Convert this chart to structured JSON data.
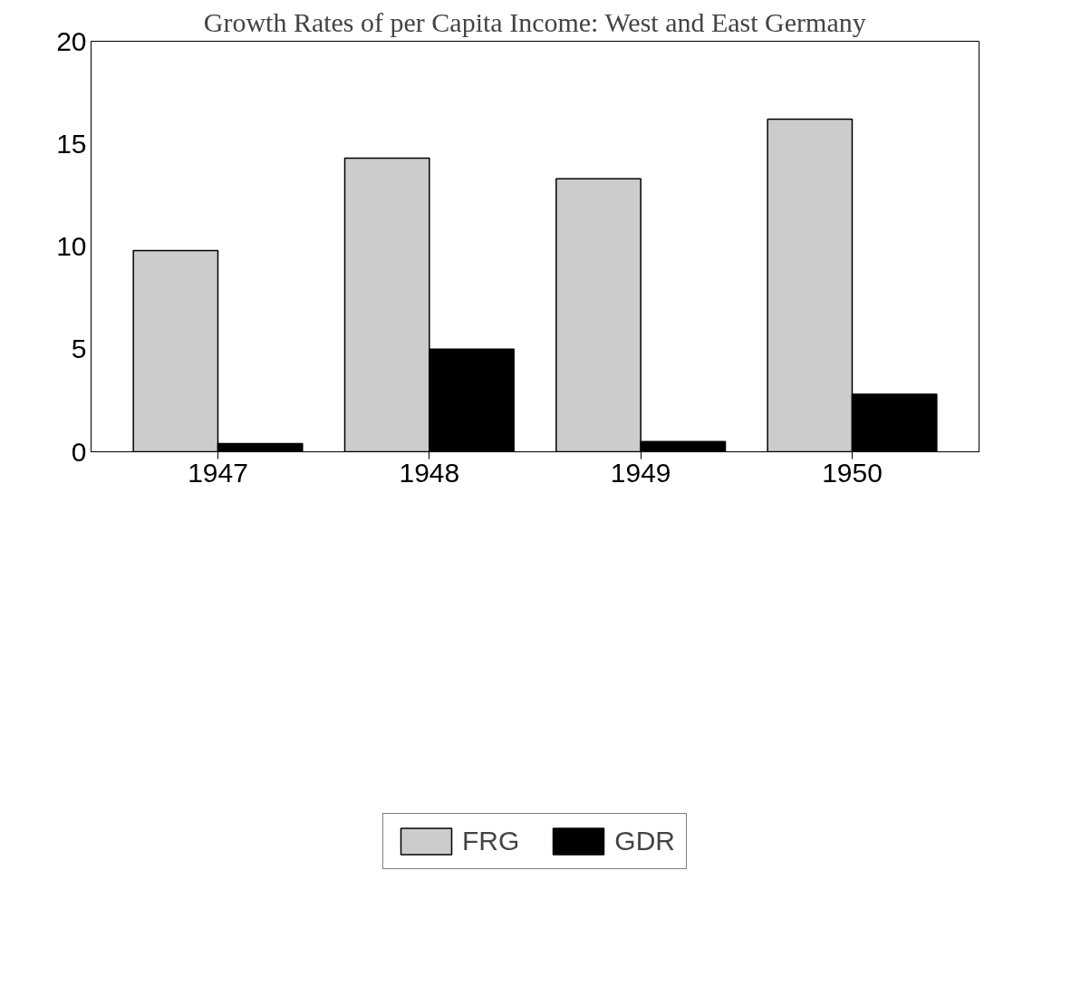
{
  "chart_data": {
    "type": "bar",
    "title": "Growth Rates of per Capita Income: West and East Germany",
    "categories": [
      "1947",
      "1948",
      "1949",
      "1950"
    ],
    "series": [
      {
        "name": "FRG",
        "color": "#cccccc",
        "values": [
          9.8,
          14.3,
          13.3,
          16.2
        ]
      },
      {
        "name": "GDR",
        "color": "#000000",
        "values": [
          0.4,
          5.0,
          0.5,
          2.8
        ]
      }
    ],
    "ylim": [
      0,
      20
    ],
    "yticks": [
      0,
      5,
      10,
      15,
      20
    ],
    "grid": false,
    "legend": "bottom"
  }
}
